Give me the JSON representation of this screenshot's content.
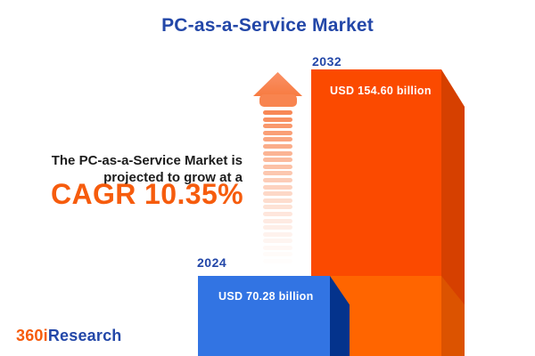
{
  "header": {
    "title": "PC-as-a-Service Market"
  },
  "annotation": {
    "line1": "The PC-as-a-Service Market is",
    "line2": "projected to grow at a",
    "cagr_label": "CAGR 10.35%"
  },
  "chart_data": {
    "type": "bar",
    "title": "PC-as-a-Service Market",
    "categories": [
      "2024",
      "2032"
    ],
    "values": [
      70.28,
      154.6
    ],
    "unit": "USD billion",
    "value_labels": [
      "USD 70.28 billion",
      "USD 154.60 billion"
    ],
    "cagr_percent": 10.35,
    "xlabel": "",
    "ylabel": "",
    "grid": false,
    "legend_position": "none",
    "bar_colors": [
      "#3274E3",
      "#FB4A00"
    ],
    "style": "3d-infographic-bars"
  },
  "bars": [
    {
      "year": "2024",
      "value_label": "USD 70.28 billion"
    },
    {
      "year": "2032",
      "value_label": "USD 154.60 billion"
    }
  ],
  "logo": {
    "part1": "360i",
    "part2": "Research"
  },
  "colors": {
    "title_blue": "#2347A8",
    "accent_orange": "#F65C0D",
    "text_dark": "#1C1C1C",
    "bar_2024_front": "#3274E3",
    "bar_2024_side": "#04338C",
    "bar_2032_front": "#FB4A00",
    "bar_2032_side": "#D64000",
    "bar_2032_base_front": "#FF6500",
    "bar_2032_base_side": "#DC5300",
    "arrow_orange": "#F8824D",
    "background": "#FFFFFF"
  }
}
